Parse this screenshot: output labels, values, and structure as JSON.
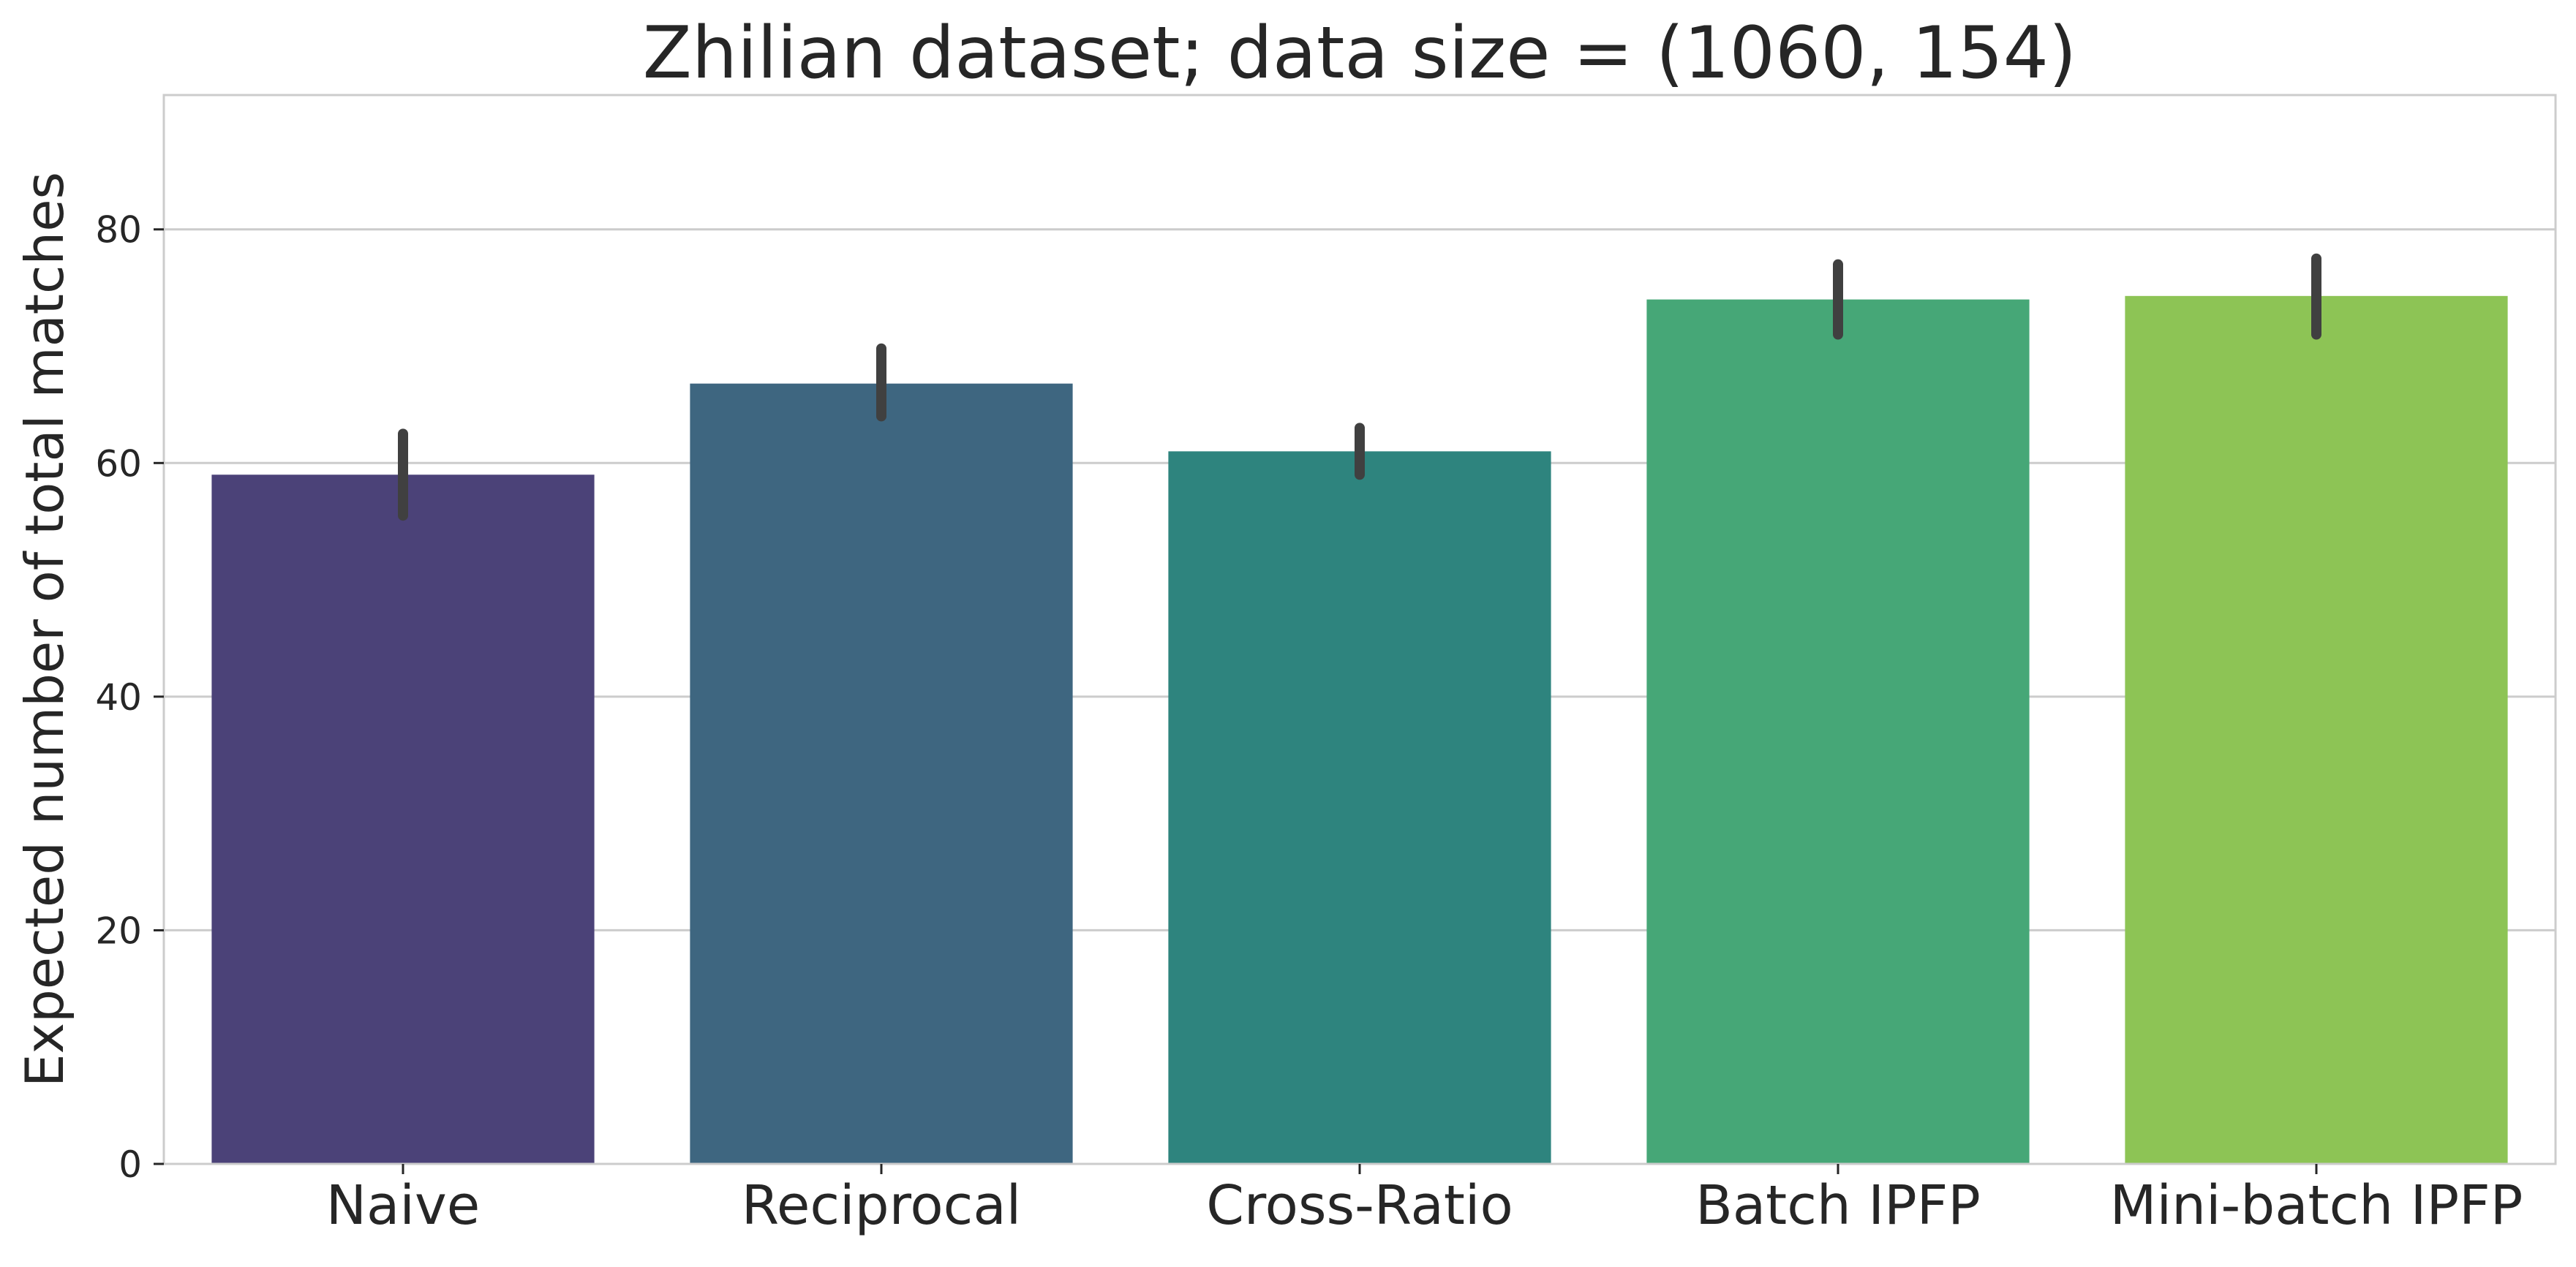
{
  "chart_data": {
    "type": "bar",
    "title": "Zhilian dataset; data size = (1060, 154)",
    "xlabel": "",
    "ylabel": "Expected number of total matches",
    "categories": [
      "Naive",
      "Reciprocal",
      "Cross-Ratio",
      "Batch IPFP",
      "Mini-batch IPFP"
    ],
    "values": [
      59.0,
      66.8,
      61.0,
      74.0,
      74.3
    ],
    "error_bars": [
      [
        55.5,
        62.5
      ],
      [
        64.0,
        69.8
      ],
      [
        59.0,
        63.0
      ],
      [
        71.0,
        77.0
      ],
      [
        71.0,
        77.5
      ]
    ],
    "colors": [
      "#4b4278",
      "#3e6680",
      "#2e847e",
      "#46a777",
      "#8dc455"
    ],
    "error_color": "#404040",
    "ylim": [
      0,
      91.5
    ],
    "yticks": [
      0,
      20,
      40,
      60,
      80
    ],
    "grid": true
  }
}
